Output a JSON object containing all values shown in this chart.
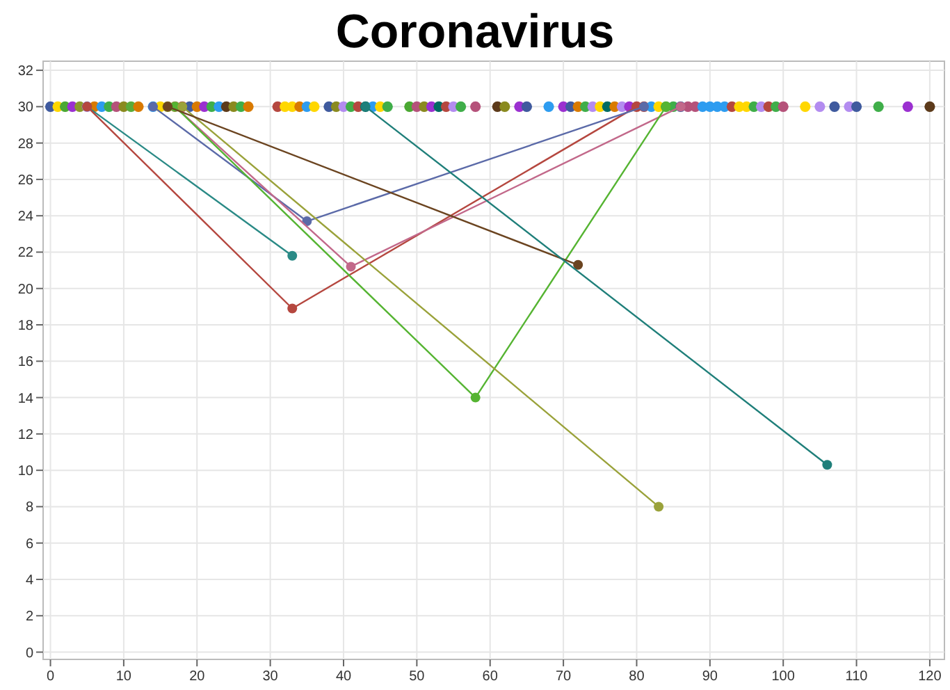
{
  "chart_data": {
    "type": "line",
    "title": "Coronavirus",
    "xlim": [
      -1,
      122
    ],
    "ylim": [
      -0.4,
      32.5
    ],
    "xticks": [
      0,
      10,
      20,
      30,
      40,
      50,
      60,
      70,
      80,
      90,
      100,
      110,
      120
    ],
    "yticks": [
      0,
      2,
      4,
      6,
      8,
      10,
      12,
      14,
      16,
      18,
      20,
      22,
      24,
      26,
      28,
      30,
      32
    ],
    "grid": true,
    "marker": "circle",
    "series": [
      {
        "type": "scatter",
        "x": [
          0,
          1,
          2,
          3,
          4,
          5,
          6,
          7,
          8,
          9,
          10,
          11,
          12,
          14,
          15,
          16,
          17,
          18,
          19,
          20,
          21,
          22,
          23,
          24,
          25,
          26,
          27,
          31,
          32,
          33,
          34,
          35,
          36,
          38,
          39,
          40,
          41,
          42,
          43,
          44,
          45,
          46,
          49,
          50,
          51,
          52,
          53,
          54,
          55,
          56,
          58,
          61,
          62,
          64,
          65,
          68,
          70,
          71,
          72,
          73,
          74,
          75,
          76,
          77,
          78,
          79,
          80,
          81,
          82,
          83,
          84,
          85,
          86,
          87,
          88,
          89,
          90,
          91,
          92,
          93,
          94,
          95,
          96,
          97,
          98,
          99,
          100,
          103,
          105,
          107,
          109,
          110,
          113,
          117,
          120
        ],
        "values": [
          30,
          30,
          30,
          30,
          30,
          30,
          30,
          30,
          30,
          30,
          30,
          30,
          30,
          30,
          30,
          30,
          30,
          30,
          30,
          30,
          30,
          30,
          30,
          30,
          30,
          30,
          30,
          30,
          30,
          30,
          30,
          30,
          30,
          30,
          30,
          30,
          30,
          30,
          30,
          30,
          30,
          30,
          30,
          30,
          30,
          30,
          30,
          30,
          30,
          30,
          30,
          30,
          30,
          30,
          30,
          30,
          30,
          30,
          30,
          30,
          30,
          30,
          30,
          30,
          30,
          30,
          30,
          30,
          30,
          30,
          30,
          30,
          30,
          30,
          30,
          30,
          30,
          30,
          30,
          30,
          30,
          30,
          30,
          30,
          30,
          30,
          30,
          30,
          30,
          30,
          30,
          30,
          30,
          30,
          30
        ],
        "colors": [
          "#3f5a9e",
          "#ffd700",
          "#4aa832",
          "#9b30d0",
          "#8a9a2a",
          "#b38cf0",
          "#d97a00",
          "#2d9cf0",
          "#3fae49",
          "#b5527a",
          "#8a8a1f",
          "#5aab3a",
          "#d97a00",
          "#2d9cf0",
          "#ffd700",
          "#8a8a1f",
          "#8a8a1f",
          "#b5473f",
          "#3f5a9e",
          "#d97a00",
          "#9b30d0",
          "#3fae49",
          "#2d9cf0",
          "#5c3a1a",
          "#8a8a1f",
          "#3fae49",
          "#d97a00",
          "#b5473f",
          "#ffd700",
          "#ffd700",
          "#d97a00",
          "#2d9cf0",
          "#ffd700",
          "#3f5a9e",
          "#8a8a1f",
          "#b38cf0",
          "#3fae49",
          "#b5473f",
          "#006b63",
          "#2d9cf0",
          "#ffd700",
          "#3fae49",
          "#4aa832",
          "#b5527a",
          "#8a8a1f",
          "#9b30d0",
          "#006b63",
          "#b5473f",
          "#b38cf0",
          "#3fae49",
          "#b5527a",
          "#5c3a1a",
          "#8a8a1f",
          "#9b30d0",
          "#3f5a9e",
          "#2d9cf0",
          "#9b30d0",
          "#3f5a9e",
          "#d97a00",
          "#3fae49",
          "#b38cf0",
          "#ffd700",
          "#006b63",
          "#d97a00",
          "#b38cf0",
          "#9b30d0",
          "#b5473f",
          "#b5473f",
          "#2d9cf0",
          "#ffd700",
          "#4aa832",
          "#3fae49",
          "#3f5a9e",
          "#b5527a",
          "#b5527a",
          "#2d9cf0",
          "#2d9cf0",
          "#2d9cf0",
          "#2d9cf0",
          "#b5473f",
          "#ffd700",
          "#ffd700",
          "#3fae49",
          "#b38cf0",
          "#b5473f",
          "#3fae49",
          "#b5527a",
          "#ffd700",
          "#b38cf0",
          "#3f5a9e",
          "#b38cf0",
          "#3f5a9e",
          "#3fae49",
          "#9b30d0",
          "#5c3a1a"
        ]
      },
      {
        "x": [
          5,
          33
        ],
        "values": [
          30,
          21.8
        ],
        "color": "#2a8a86"
      },
      {
        "x": [
          5,
          33,
          80
        ],
        "values": [
          30,
          18.9,
          30
        ],
        "color": "#b5473f"
      },
      {
        "x": [
          14,
          35,
          81
        ],
        "values": [
          30,
          23.7,
          30
        ],
        "color": "#5b6aa8"
      },
      {
        "x": [
          17,
          41,
          86
        ],
        "values": [
          30,
          21.2,
          30
        ],
        "color": "#c2688a"
      },
      {
        "x": [
          17,
          58,
          84
        ],
        "values": [
          30,
          14,
          30
        ],
        "color": "#55b432"
      },
      {
        "x": [
          18,
          83
        ],
        "values": [
          30,
          8
        ],
        "color": "#9aa23a"
      },
      {
        "x": [
          16,
          72
        ],
        "values": [
          30,
          21.3
        ],
        "color": "#6b4420"
      },
      {
        "x": [
          43,
          106
        ],
        "values": [
          30,
          10.3
        ],
        "color": "#1f7f7a"
      }
    ]
  }
}
